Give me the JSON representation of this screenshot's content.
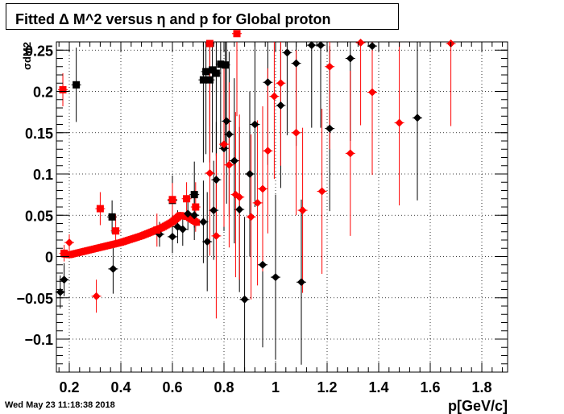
{
  "title": "Fitted Δ M^2 versus η and p for Global proton",
  "timestamp": "Wed May 23 11:18:38 2018",
  "chart_data": {
    "type": "scatter",
    "title": "Fitted Δ M^2 versus η and p for Global proton",
    "xlabel": "p[GeV/c]",
    "ylabel": "σdM2",
    "xlim": [
      0.15,
      1.9
    ],
    "ylim": [
      -0.14,
      0.26
    ],
    "x_ticks": [
      "0.2",
      "0.4",
      "0.6",
      "0.8",
      "1",
      "1.2",
      "1.4",
      "1.6",
      "1.8"
    ],
    "y_ticks": [
      "−0.1",
      "−0.05",
      "0",
      "0.05",
      "0.1",
      "0.15",
      "0.2",
      "0.25"
    ],
    "grid": true,
    "legend": "none",
    "series": [
      {
        "marker": "square",
        "color": "#000000",
        "points": [
          [
            0.227,
            0.208,
            0.045
          ],
          [
            0.366,
            0.048,
            0.02
          ],
          [
            0.72,
            0.214,
            0.1
          ],
          [
            0.73,
            0.224,
            0.1
          ],
          [
            0.745,
            0.214,
            0.1
          ],
          [
            0.755,
            0.226,
            0.1
          ],
          [
            0.77,
            0.222,
            0.1
          ],
          [
            0.787,
            0.233,
            0.1
          ],
          [
            0.805,
            0.232,
            0.1
          ],
          [
            0.685,
            0.075,
            0.04
          ],
          [
            0.6,
            0.068,
            0.03
          ]
        ]
      },
      {
        "marker": "diamond",
        "color": "#000000",
        "points": [
          [
            0.165,
            -0.043,
            0.02
          ],
          [
            0.18,
            -0.028,
            0.02
          ],
          [
            0.37,
            -0.015,
            0.03
          ],
          [
            0.55,
            0.027,
            0.015
          ],
          [
            0.6,
            0.024,
            0.02
          ],
          [
            0.62,
            0.036,
            0.02
          ],
          [
            0.64,
            0.033,
            0.02
          ],
          [
            0.66,
            0.052,
            0.02
          ],
          [
            0.685,
            0.05,
            0.03
          ],
          [
            0.72,
            0.042,
            0.05
          ],
          [
            0.735,
            0.018,
            0.06
          ],
          [
            0.76,
            0.056,
            0.06
          ],
          [
            0.77,
            0.093,
            0.07
          ],
          [
            0.8,
            0.131,
            0.1
          ],
          [
            0.81,
            0.164,
            0.1
          ],
          [
            0.82,
            0.148,
            0.1
          ],
          [
            0.84,
            0.116,
            0.1
          ],
          [
            0.86,
            0.057,
            0.1
          ],
          [
            0.88,
            -0.052,
            0.1
          ],
          [
            0.9,
            0.1,
            0.1
          ],
          [
            0.92,
            0.16,
            0.1
          ],
          [
            0.95,
            -0.01,
            0.1
          ],
          [
            0.97,
            0.211,
            0.1
          ],
          [
            1.0,
            -0.025,
            0.1
          ],
          [
            1.02,
            0.183,
            0.1
          ],
          [
            1.045,
            0.247,
            0.1
          ],
          [
            1.08,
            0.234,
            0.1
          ],
          [
            1.1,
            -0.031,
            0.1
          ],
          [
            1.14,
            0.256,
            0.1
          ],
          [
            1.175,
            0.256,
            0.1
          ],
          [
            1.21,
            0.155,
            0.1
          ],
          [
            1.29,
            0.24,
            0.1
          ],
          [
            1.375,
            0.255,
            0.1
          ],
          [
            1.55,
            0.168,
            0.1
          ]
        ]
      },
      {
        "marker": "square",
        "color": "#ff0000",
        "points": [
          [
            0.175,
            0.202,
            0.02
          ],
          [
            0.18,
            0.004,
            0.01
          ],
          [
            0.32,
            0.058,
            0.02
          ],
          [
            0.38,
            0.031,
            0.02
          ],
          [
            0.54,
            0.032,
            0.02
          ],
          [
            0.6,
            0.069,
            0.02
          ],
          [
            0.655,
            0.07,
            0.02
          ],
          [
            0.69,
            0.06,
            0.03
          ],
          [
            0.745,
            0.258,
            0.1
          ],
          [
            0.85,
            0.27,
            0.1
          ]
        ]
      },
      {
        "marker": "diamond",
        "color": "#ff0000",
        "points": [
          [
            0.2,
            0.017,
            0.01
          ],
          [
            0.305,
            -0.048,
            0.02
          ],
          [
            0.745,
            0.101,
            0.1
          ],
          [
            0.77,
            0.025,
            0.1
          ],
          [
            0.8,
            0.136,
            0.1
          ],
          [
            0.82,
            0.111,
            0.1
          ],
          [
            0.845,
            0.075,
            0.1
          ],
          [
            0.86,
            0.072,
            0.1
          ],
          [
            0.905,
            0.048,
            0.1
          ],
          [
            0.93,
            0.065,
            0.1
          ],
          [
            0.95,
            0.082,
            0.1
          ],
          [
            0.97,
            0.128,
            0.1
          ],
          [
            0.995,
            0.194,
            0.1
          ],
          [
            1.02,
            0.21,
            0.1
          ],
          [
            1.08,
            0.15,
            0.1
          ],
          [
            1.105,
            0.056,
            0.1
          ],
          [
            1.18,
            0.079,
            0.1
          ],
          [
            1.21,
            0.23,
            0.1
          ],
          [
            1.29,
            0.125,
            0.1
          ],
          [
            1.33,
            0.259,
            0.1
          ],
          [
            1.375,
            0.199,
            0.1
          ],
          [
            1.48,
            0.162,
            0.1
          ],
          [
            1.68,
            0.258,
            0.1
          ]
        ]
      }
    ],
    "band": [
      [
        0.18,
        0.003
      ],
      [
        0.2,
        0.002
      ],
      [
        0.24,
        0.005
      ],
      [
        0.28,
        0.008
      ],
      [
        0.32,
        0.011
      ],
      [
        0.36,
        0.014
      ],
      [
        0.4,
        0.017
      ],
      [
        0.44,
        0.021
      ],
      [
        0.48,
        0.025
      ],
      [
        0.52,
        0.03
      ],
      [
        0.56,
        0.035
      ],
      [
        0.6,
        0.042
      ],
      [
        0.63,
        0.05
      ],
      [
        0.66,
        0.048
      ],
      [
        0.7,
        0.04
      ]
    ]
  }
}
